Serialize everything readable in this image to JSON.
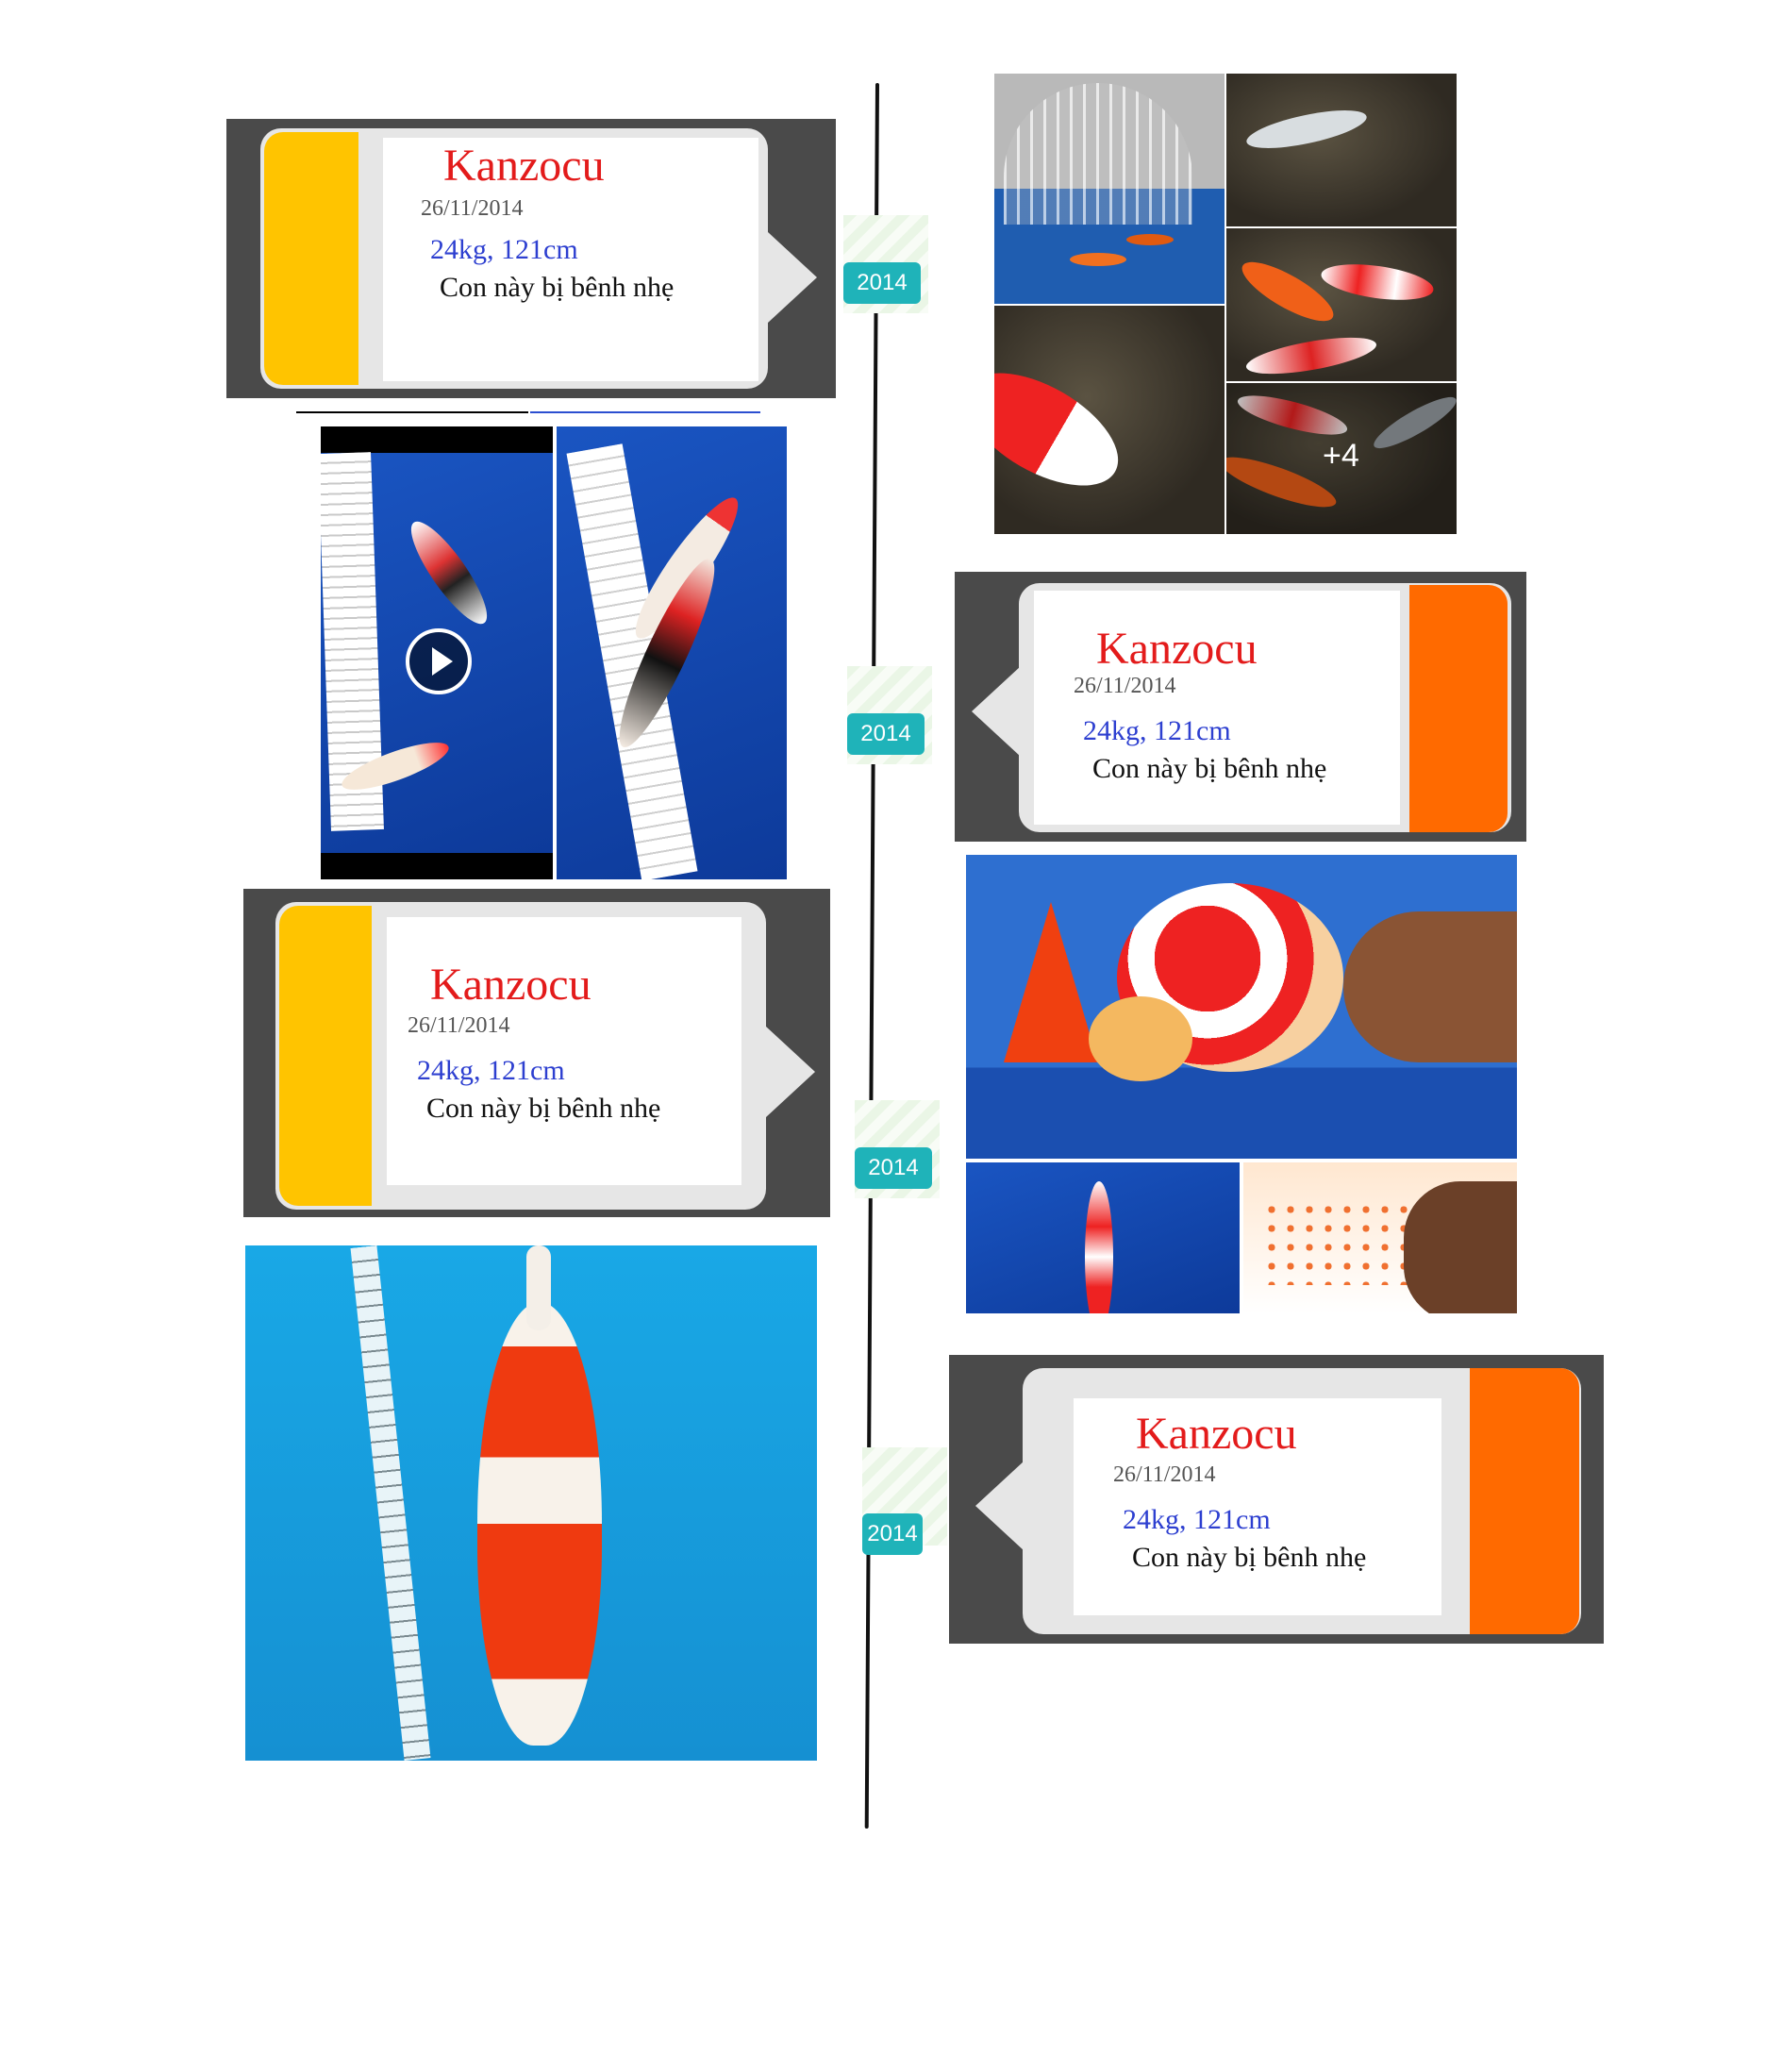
{
  "timeline": {
    "year_label": "2014",
    "cards": [
      {
        "title": "Kanzocu",
        "date": "26/11/2014",
        "stats": "24kg, 121cm",
        "note": "Con này bị bênh nhẹ",
        "accent": "#ffc400"
      },
      {
        "title": "Kanzocu",
        "date": "26/11/2014",
        "stats": "24kg, 121cm",
        "note": "Con này bị bênh nhẹ",
        "accent": "#ff6a00"
      },
      {
        "title": "Kanzocu",
        "date": "26/11/2014",
        "stats": "24kg, 121cm",
        "note": "Con này bị bênh nhẹ",
        "accent": "#ffc400"
      },
      {
        "title": "Kanzocu",
        "date": "26/11/2014",
        "stats": "24kg, 121cm",
        "note": "Con này bị bênh nhẹ",
        "accent": "#ff6a00"
      }
    ],
    "gallery_more": "+4"
  },
  "colors": {
    "badge": "#1fb3b9",
    "title": "#e31b1b",
    "stats": "#2d3fd0",
    "card_frame": "#4a4a4a"
  }
}
